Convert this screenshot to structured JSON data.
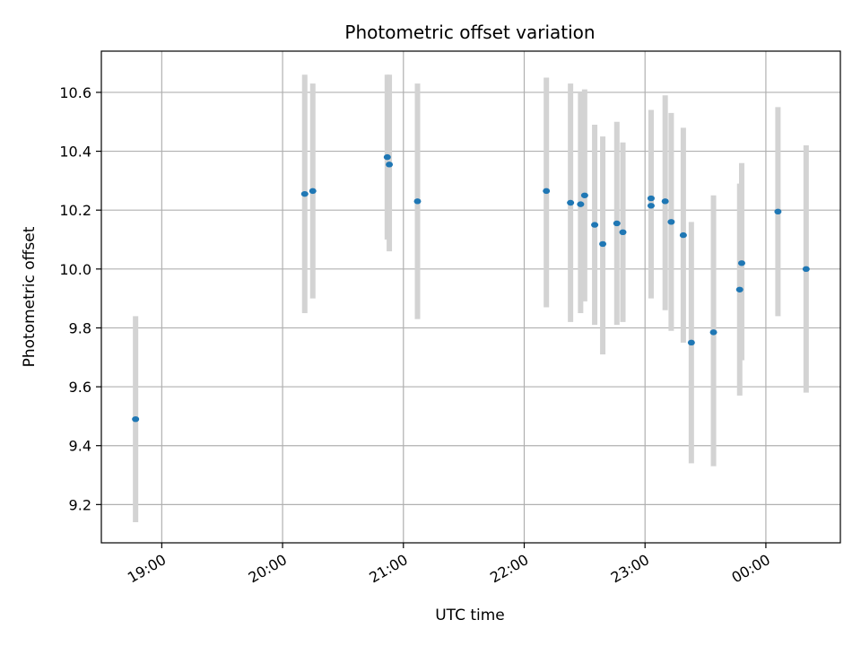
{
  "chart_data": {
    "type": "scatter",
    "title": "Photometric offset variation",
    "xlabel": "UTC time",
    "ylabel": "Photometric offset",
    "grid": true,
    "x_tick_labels": [
      "19:00",
      "20:00",
      "21:00",
      "22:00",
      "23:00",
      "00:00"
    ],
    "x_ticks": [
      "19:00",
      "20:00",
      "21:00",
      "22:00",
      "23:00",
      "24:00"
    ],
    "y_ticks": [
      9.2,
      9.4,
      9.6,
      9.8,
      10.0,
      10.2,
      10.4,
      10.6
    ],
    "y_tick_labels": [
      "9.2",
      "9.4",
      "9.6",
      "9.8",
      "10.0",
      "10.2",
      "10.4",
      "10.6"
    ],
    "xlim": [
      "18:30",
      "24:37"
    ],
    "ylim": [
      9.07,
      10.74
    ],
    "colors": {
      "points": "#1f77b4",
      "error_bars": "#d3d3d3",
      "grid": "#b0b0b0"
    },
    "points": [
      {
        "x": "18:47",
        "y": 9.49,
        "ylo": 9.14,
        "yhi": 9.84
      },
      {
        "x": "20:11",
        "y": 10.255,
        "ylo": 9.85,
        "yhi": 10.66
      },
      {
        "x": "20:15",
        "y": 10.265,
        "ylo": 9.9,
        "yhi": 10.63
      },
      {
        "x": "20:52",
        "y": 10.38,
        "ylo": 10.1,
        "yhi": 10.66
      },
      {
        "x": "20:53",
        "y": 10.355,
        "ylo": 10.06,
        "yhi": 10.66
      },
      {
        "x": "21:07",
        "y": 10.23,
        "ylo": 9.83,
        "yhi": 10.63
      },
      {
        "x": "22:11",
        "y": 10.265,
        "ylo": 9.87,
        "yhi": 10.65
      },
      {
        "x": "22:23",
        "y": 10.225,
        "ylo": 9.82,
        "yhi": 10.63
      },
      {
        "x": "22:28",
        "y": 10.22,
        "ylo": 9.85,
        "yhi": 10.6
      },
      {
        "x": "22:30",
        "y": 10.25,
        "ylo": 9.89,
        "yhi": 10.61
      },
      {
        "x": "22:35",
        "y": 10.15,
        "ylo": 9.81,
        "yhi": 10.49
      },
      {
        "x": "22:39",
        "y": 10.085,
        "ylo": 9.71,
        "yhi": 10.45
      },
      {
        "x": "22:46",
        "y": 10.155,
        "ylo": 9.81,
        "yhi": 10.5
      },
      {
        "x": "22:49",
        "y": 10.125,
        "ylo": 9.82,
        "yhi": 10.43
      },
      {
        "x": "23:03",
        "y": 10.24,
        "ylo": 9.9,
        "yhi": 10.54
      },
      {
        "x": "23:03",
        "y": 10.215,
        "ylo": 9.95,
        "yhi": 10.54
      },
      {
        "x": "23:10",
        "y": 10.23,
        "ylo": 9.86,
        "yhi": 10.59
      },
      {
        "x": "23:13",
        "y": 10.16,
        "ylo": 9.79,
        "yhi": 10.53
      },
      {
        "x": "23:19",
        "y": 10.115,
        "ylo": 9.75,
        "yhi": 10.48
      },
      {
        "x": "23:23",
        "y": 9.75,
        "ylo": 9.34,
        "yhi": 10.16
      },
      {
        "x": "23:34",
        "y": 9.785,
        "ylo": 9.33,
        "yhi": 10.25
      },
      {
        "x": "23:47",
        "y": 9.93,
        "ylo": 9.57,
        "yhi": 10.29
      },
      {
        "x": "23:48",
        "y": 10.02,
        "ylo": 9.69,
        "yhi": 10.36
      },
      {
        "x": "24:06",
        "y": 10.195,
        "ylo": 9.84,
        "yhi": 10.55
      },
      {
        "x": "24:20",
        "y": 10.0,
        "ylo": 9.58,
        "yhi": 10.42
      }
    ]
  }
}
